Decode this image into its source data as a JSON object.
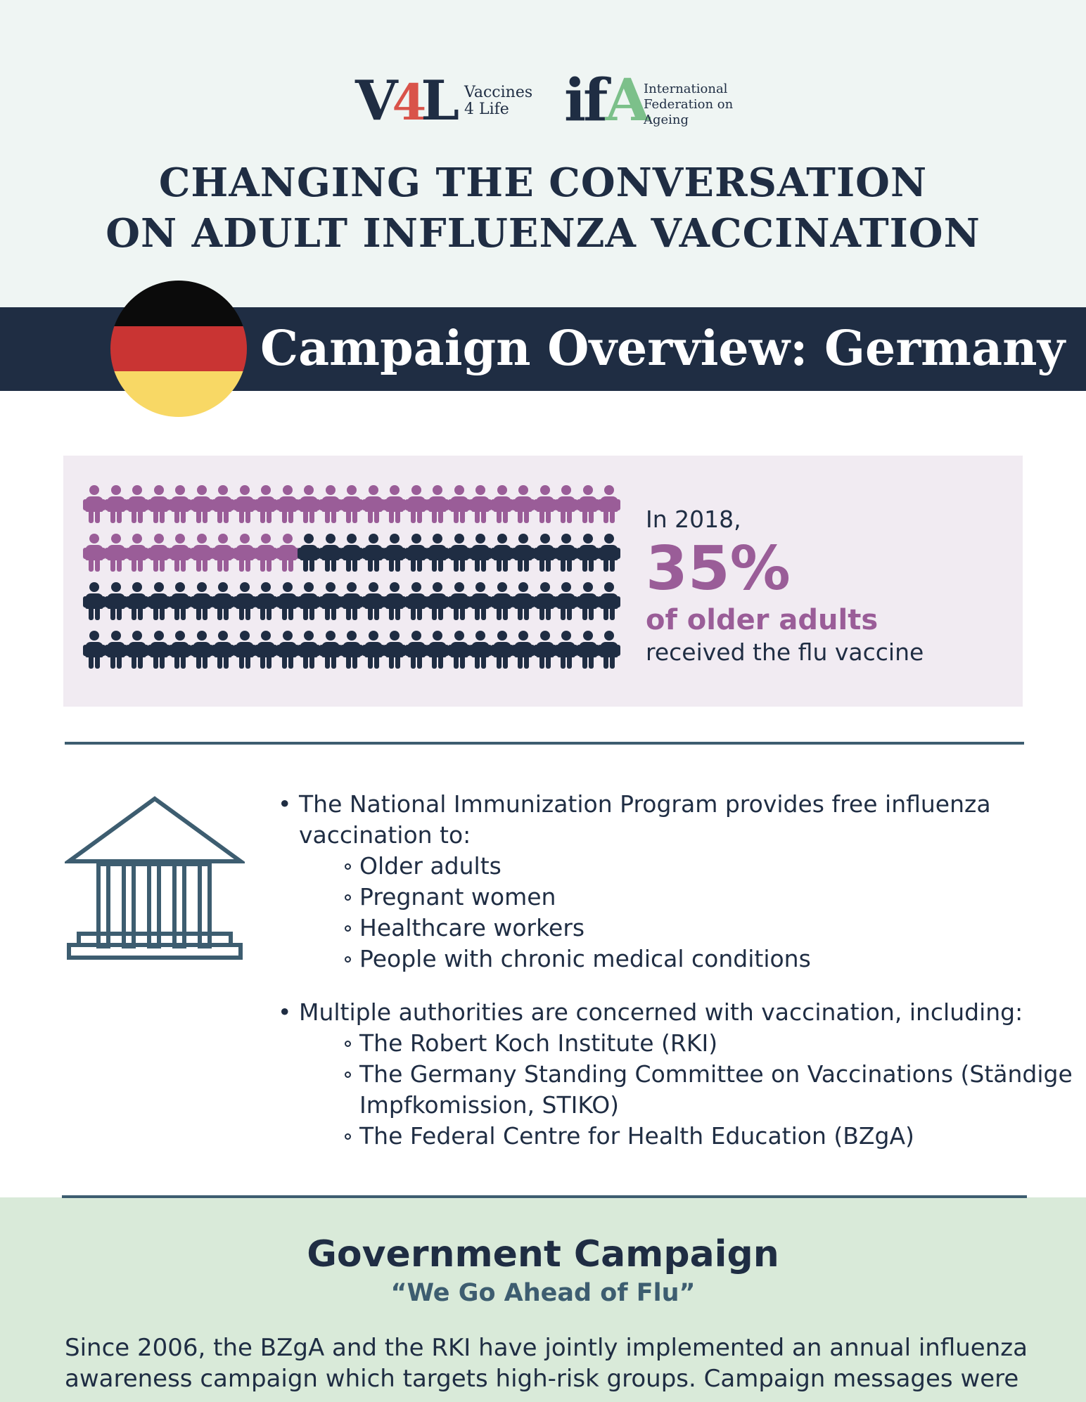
{
  "logos": {
    "v4l_mark_v": "V",
    "v4l_mark_4": "4",
    "v4l_mark_l": "L",
    "v4l_line1": "Vaccines",
    "v4l_line2": "4 Life",
    "ifa_mark_if": "if",
    "ifa_mark_a": "A",
    "ifa_line1": "International",
    "ifa_line2": "Federation on",
    "ifa_line3": "Ageing"
  },
  "header": {
    "title_line1": "CHANGING THE CONVERSATION",
    "title_line2": "ON ADULT INFLUENZA VACCINATION"
  },
  "banner": {
    "title": "Campaign Overview: Germany",
    "flag_colors": [
      "#0b0b0b",
      "#c93433",
      "#f8d865"
    ]
  },
  "stat": {
    "intro": "In 2018,",
    "percent": "35%",
    "subject": "of older adults",
    "tail": "received the flu vaccine",
    "people_total": 100,
    "people_highlighted": 35,
    "highlight_color": "#9a5d98",
    "base_color": "#1f2d43"
  },
  "bullets": [
    {
      "text": "The National Immunization Program provides free influenza vaccination to:",
      "items": [
        "Older adults",
        "Pregnant women",
        "Healthcare workers",
        "People with chronic medical conditions"
      ]
    },
    {
      "text": "Multiple authorities are concerned with vaccination, including:",
      "items": [
        "The Robert Koch Institute (RKI)",
        "The Germany Standing Committee on Vaccinations (Ständige Impfkomission, STIKO)",
        "The Federal Centre for Health Education (BZgA)"
      ]
    }
  ],
  "government": {
    "title": "Government Campaign",
    "subtitle": "“We Go Ahead of Flu”",
    "body": "Since 2006, the BZgA and the RKI have jointly implemented an annual influenza awareness campaign which targets high-risk groups. Campaign messages were"
  },
  "icons": {
    "building": "government-building-icon"
  },
  "colors": {
    "navy": "#1f2d43",
    "purple": "#9a5d98",
    "teal": "#3d5d70",
    "mint_bg": "#eff5f3",
    "lavender_bg": "#f1ebf2",
    "green_bg": "#d9ead9"
  }
}
